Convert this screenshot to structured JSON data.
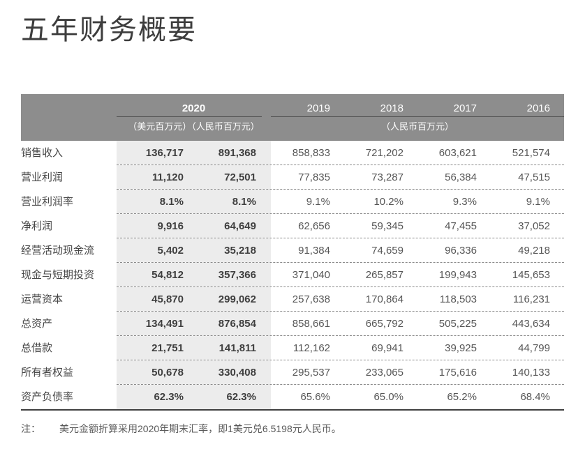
{
  "page": {
    "title": "五年财务概要",
    "note_label": "注：",
    "note_text": "美元金额折算采用2020年期末汇率，即1美元兑6.5198元人民币。"
  },
  "colors": {
    "header_band": "#8d8d8d",
    "highlight_column": "#ececec",
    "text_dark": "#3f3f3f",
    "text_gray": "#565656"
  },
  "table": {
    "group_2020": {
      "year": "2020",
      "subheader": "（美元百万元）（人民币百万元）"
    },
    "years": [
      "2019",
      "2018",
      "2017",
      "2016"
    ],
    "years_subheader": "（人民币百万元）",
    "rows": [
      {
        "label": "销售收入",
        "usd": "136,717",
        "rmb": "891,368",
        "y2019": "858,833",
        "y2018": "721,202",
        "y2017": "603,621",
        "y2016": "521,574"
      },
      {
        "label": "营业利润",
        "usd": "11,120",
        "rmb": "72,501",
        "y2019": "77,835",
        "y2018": "73,287",
        "y2017": "56,384",
        "y2016": "47,515"
      },
      {
        "label": "营业利润率",
        "usd": "8.1%",
        "rmb": "8.1%",
        "y2019": "9.1%",
        "y2018": "10.2%",
        "y2017": "9.3%",
        "y2016": "9.1%"
      },
      {
        "label": "净利润",
        "usd": "9,916",
        "rmb": "64,649",
        "y2019": "62,656",
        "y2018": "59,345",
        "y2017": "47,455",
        "y2016": "37,052"
      },
      {
        "label": "经营活动现金流",
        "usd": "5,402",
        "rmb": "35,218",
        "y2019": "91,384",
        "y2018": "74,659",
        "y2017": "96,336",
        "y2016": "49,218"
      },
      {
        "label": "现金与短期投资",
        "usd": "54,812",
        "rmb": "357,366",
        "y2019": "371,040",
        "y2018": "265,857",
        "y2017": "199,943",
        "y2016": "145,653"
      },
      {
        "label": "运营资本",
        "usd": "45,870",
        "rmb": "299,062",
        "y2019": "257,638",
        "y2018": "170,864",
        "y2017": "118,503",
        "y2016": "116,231"
      },
      {
        "label": "总资产",
        "usd": "134,491",
        "rmb": "876,854",
        "y2019": "858,661",
        "y2018": "665,792",
        "y2017": "505,225",
        "y2016": "443,634"
      },
      {
        "label": "总借款",
        "usd": "21,751",
        "rmb": "141,811",
        "y2019": "112,162",
        "y2018": "69,941",
        "y2017": "39,925",
        "y2016": "44,799"
      },
      {
        "label": "所有者权益",
        "usd": "50,678",
        "rmb": "330,408",
        "y2019": "295,537",
        "y2018": "233,065",
        "y2017": "175,616",
        "y2016": "140,133"
      },
      {
        "label": "资产负债率",
        "usd": "62.3%",
        "rmb": "62.3%",
        "y2019": "65.6%",
        "y2018": "65.0%",
        "y2017": "65.2%",
        "y2016": "68.4%"
      }
    ]
  }
}
